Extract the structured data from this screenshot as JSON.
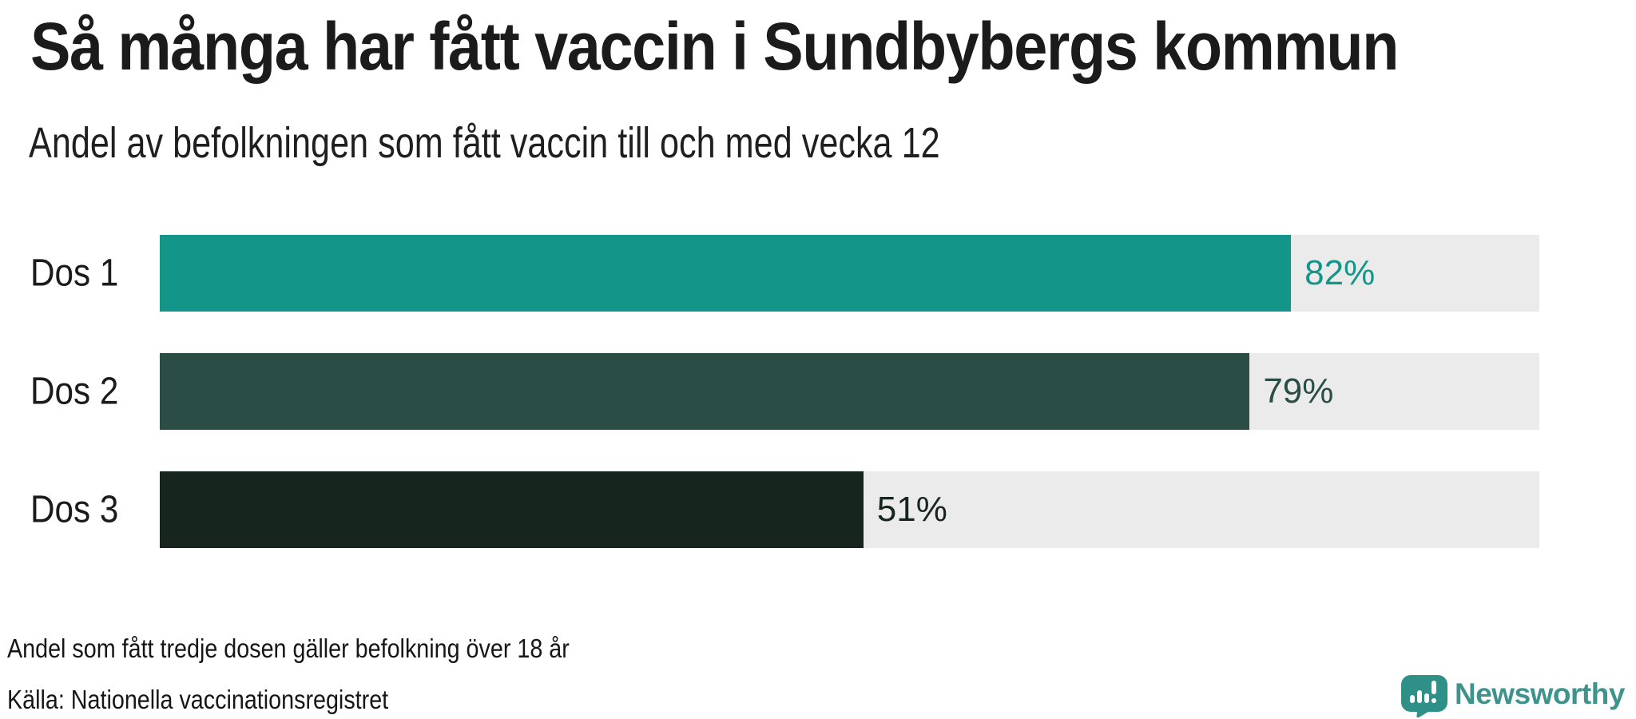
{
  "chart_data": {
    "type": "bar",
    "orientation": "horizontal",
    "title": "Så många har fått vaccin i Sundbybergs kommun",
    "subtitle": "Andel av befolkningen som fått vaccin till och med vecka 12",
    "categories": [
      "Dos 1",
      "Dos 2",
      "Dos 3"
    ],
    "values": [
      82,
      79,
      51
    ],
    "value_labels": [
      "82%",
      "79%",
      "51%"
    ],
    "unit": "%",
    "xlim": [
      0,
      100
    ],
    "grid": false,
    "legend": false,
    "bar_colors": [
      "#14958a",
      "#2a4e46",
      "#16261f"
    ],
    "value_label_colors": [
      "#14958a",
      "#2a4e46",
      "#16261f"
    ],
    "track_color": "#ebebeb",
    "note": "Andel som fått tredje dosen gäller befolkning över 18 år",
    "source": "Källa: Nationella vaccinationsregistret"
  },
  "branding": {
    "name": "Newsworthy",
    "accent_color": "#3e938c",
    "icon": "speech-bubble-bar-chart-exclamation"
  }
}
